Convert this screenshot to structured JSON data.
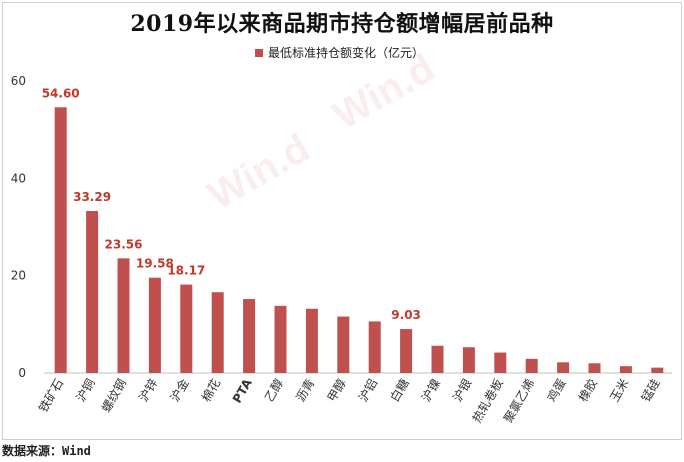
{
  "title": "2019年以来商品期市持仓额增幅居前品种",
  "source": "数据来源：Wind",
  "watermark": "Win.d",
  "chart_data": {
    "type": "bar",
    "title": "2019年以来商品期市持仓额增幅居前品种",
    "series": [
      {
        "name": "最低标准持仓额变化（亿元）",
        "color": "#c0504d",
        "values": [
          54.6,
          33.29,
          23.56,
          19.58,
          18.17,
          16.6,
          15.2,
          13.8,
          13.2,
          11.6,
          10.6,
          9.03,
          5.6,
          5.3,
          4.2,
          2.9,
          2.2,
          2.0,
          1.4,
          1.1
        ]
      }
    ],
    "categories": [
      "铁矿石",
      "沪铜",
      "螺纹钢",
      "沪锌",
      "沪金",
      "棉花",
      "PTA",
      "乙醇",
      "沥青",
      "甲醇",
      "沪铝",
      "白糖",
      "沪镍",
      "沪银",
      "热轧卷板",
      "聚氯乙烯",
      "鸡蛋",
      "橡胶",
      "玉米",
      "锰硅"
    ],
    "data_labels": [
      {
        "index": 0,
        "text": "54.60"
      },
      {
        "index": 1,
        "text": "33.29"
      },
      {
        "index": 2,
        "text": "23.56"
      },
      {
        "index": 3,
        "text": "19.58"
      },
      {
        "index": 4,
        "text": "18.17"
      },
      {
        "index": 11,
        "text": "9.03"
      }
    ],
    "yticks": [
      0,
      20,
      40,
      60
    ],
    "ylim": [
      0,
      60
    ],
    "xlabel": "",
    "ylabel": "",
    "legend": "top-center",
    "grid": false
  }
}
